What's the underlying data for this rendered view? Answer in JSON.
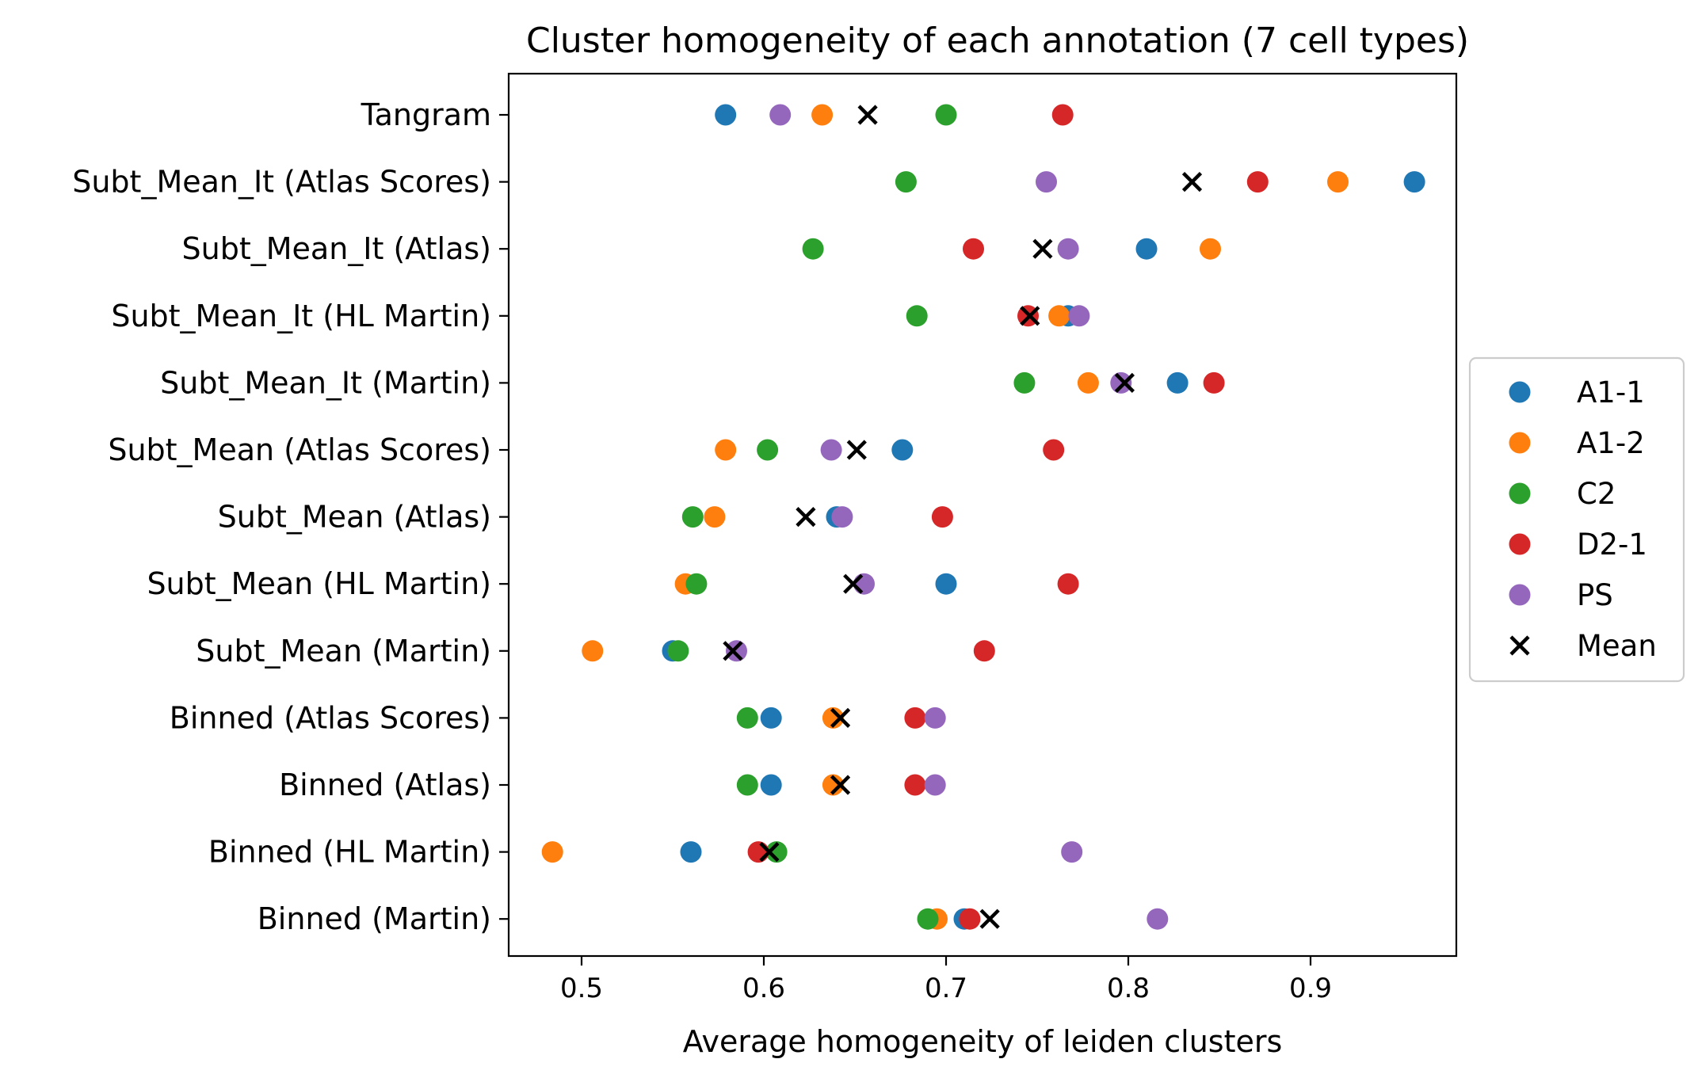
{
  "chart_data": {
    "type": "scatter",
    "title": "Cluster homogeneity of each annotation (7 cell types)",
    "xlabel": "Average homogeneity of leiden clusters",
    "ylabel": "",
    "xlim": [
      0.46,
      0.98
    ],
    "xticks": [
      0.5,
      0.6,
      0.7,
      0.8,
      0.9
    ],
    "xtick_labels": [
      "0.5",
      "0.6",
      "0.7",
      "0.8",
      "0.9"
    ],
    "grid": false,
    "legend_position": "center-right-outside",
    "categories": [
      "Tangram",
      "Subt_Mean_It (Atlas Scores)",
      "Subt_Mean_It (Atlas)",
      "Subt_Mean_It (HL Martin)",
      "Subt_Mean_It (Martin)",
      "Subt_Mean (Atlas Scores)",
      "Subt_Mean (Atlas)",
      "Subt_Mean (HL Martin)",
      "Subt_Mean (Martin)",
      "Binned (Atlas Scores)",
      "Binned (Atlas)",
      "Binned (HL Martin)",
      "Binned (Martin)"
    ],
    "series": [
      {
        "name": "A1-1",
        "color": "#1f77b4",
        "marker": "circle",
        "values": [
          0.579,
          0.957,
          0.81,
          0.767,
          0.827,
          0.676,
          0.64,
          0.7,
          0.55,
          0.604,
          0.604,
          0.56,
          0.71
        ]
      },
      {
        "name": "A1-2",
        "color": "#ff7f0e",
        "marker": "circle",
        "values": [
          0.632,
          0.915,
          0.845,
          0.762,
          0.778,
          0.579,
          0.573,
          0.557,
          0.506,
          0.638,
          0.638,
          0.484,
          0.695
        ]
      },
      {
        "name": "C2",
        "color": "#2ca02c",
        "marker": "circle",
        "values": [
          0.7,
          0.678,
          0.627,
          0.684,
          0.743,
          0.602,
          0.561,
          0.563,
          0.553,
          0.591,
          0.591,
          0.607,
          0.69
        ]
      },
      {
        "name": "D2-1",
        "color": "#d62728",
        "marker": "circle",
        "values": [
          0.764,
          0.871,
          0.715,
          0.745,
          0.847,
          0.759,
          0.698,
          0.767,
          0.721,
          0.683,
          0.683,
          0.597,
          0.713
        ]
      },
      {
        "name": "PS",
        "color": "#9467bd",
        "marker": "circle",
        "values": [
          0.609,
          0.755,
          0.767,
          0.773,
          0.796,
          0.637,
          0.643,
          0.655,
          0.585,
          0.694,
          0.694,
          0.769,
          0.816
        ]
      },
      {
        "name": "Mean",
        "color": "#000000",
        "marker": "x",
        "values": [
          0.657,
          0.835,
          0.753,
          0.746,
          0.798,
          0.651,
          0.623,
          0.649,
          0.583,
          0.642,
          0.642,
          0.603,
          0.724
        ]
      }
    ]
  }
}
